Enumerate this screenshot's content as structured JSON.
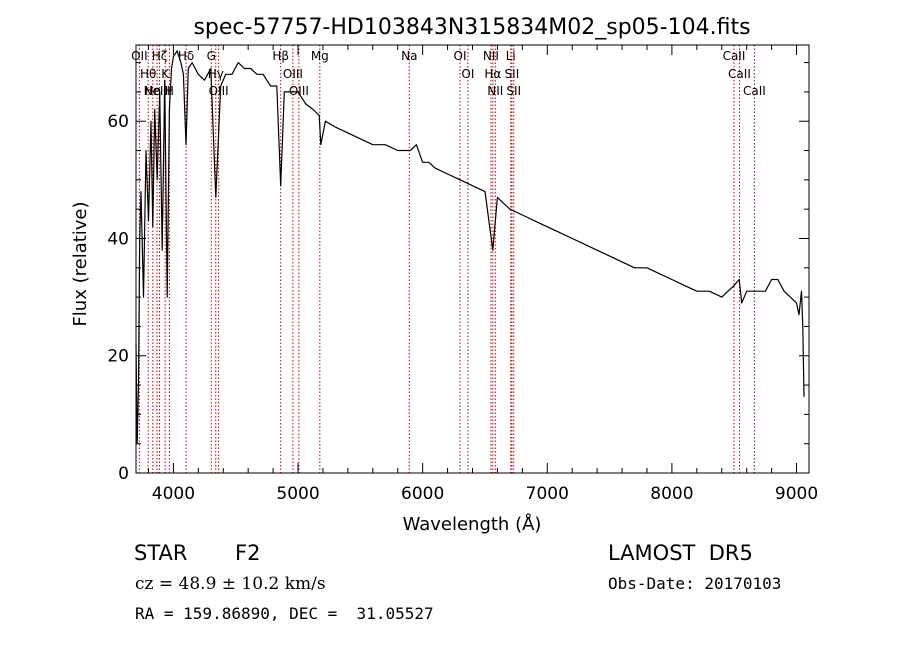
{
  "chart_data": {
    "type": "line",
    "title": "spec-57757-HD103843N315834M02_sp05-104.fits",
    "xlabel": "Wavelength (Å)",
    "ylabel": "Flux (relative)",
    "xlim": [
      3700,
      9100
    ],
    "ylim": [
      0,
      73
    ],
    "x_ticks": [
      4000,
      5000,
      6000,
      7000,
      8000,
      9000
    ],
    "x_tick_labels": [
      "4000",
      "5000",
      "6000",
      "7000",
      "8000",
      "9000"
    ],
    "y_ticks": [
      0,
      20,
      40,
      60
    ],
    "y_tick_labels": [
      "0",
      "20",
      "40",
      "60"
    ],
    "grid": false,
    "line_color": "#000000",
    "marker_color": "#c00000",
    "series": [
      {
        "x": [
          3700,
          3710,
          3720,
          3730,
          3740,
          3760,
          3780,
          3800,
          3820,
          3835,
          3850,
          3870,
          3890,
          3910,
          3930,
          3950,
          3968,
          3985,
          4000,
          4030,
          4060,
          4080,
          4101,
          4120,
          4150,
          4200,
          4250,
          4300,
          4340,
          4380,
          4420,
          4470,
          4520,
          4570,
          4620,
          4670,
          4720,
          4780,
          4830,
          4861,
          4890,
          4950,
          5000,
          5060,
          5120,
          5170,
          5183,
          5220,
          5300,
          5400,
          5500,
          5600,
          5700,
          5800,
          5900,
          5950,
          6000,
          6050,
          6100,
          6200,
          6300,
          6400,
          6500,
          6563,
          6600,
          6700,
          6800,
          6900,
          7000,
          7100,
          7200,
          7300,
          7400,
          7500,
          7600,
          7700,
          7800,
          7900,
          8000,
          8100,
          8200,
          8300,
          8400,
          8450,
          8500,
          8540,
          8560,
          8600,
          8650,
          8700,
          8750,
          8800,
          8850,
          8900,
          8950,
          9000,
          9020,
          9040,
          9050,
          9060
        ],
        "values": [
          22,
          5,
          15,
          40,
          48,
          30,
          55,
          43,
          60,
          42,
          62,
          50,
          65,
          38,
          67,
          30,
          62,
          69,
          71,
          72,
          70,
          68,
          56,
          69,
          70,
          68,
          67,
          69,
          47,
          66,
          68,
          68,
          70,
          69,
          69,
          68,
          68,
          66,
          66,
          49,
          65,
          65,
          65,
          63,
          62,
          61,
          56,
          60,
          59,
          58,
          57,
          56,
          56,
          55,
          55,
          56,
          53,
          53,
          52,
          51,
          50,
          49,
          48,
          38,
          47,
          45,
          44,
          43,
          42,
          41,
          40,
          39,
          38,
          37,
          36,
          35,
          35,
          34,
          33,
          32,
          31,
          31,
          30,
          31,
          32,
          33,
          29,
          31,
          31,
          31,
          31,
          33,
          33,
          31,
          30,
          29,
          27,
          31,
          25,
          13
        ]
      }
    ],
    "line_markers": [
      {
        "wavelength": 3727,
        "label": "OII"
      },
      {
        "wavelength": 3798,
        "label": "Hθ"
      },
      {
        "wavelength": 3835,
        "label": "Hη"
      },
      {
        "wavelength": 3869,
        "label": "NeIII"
      },
      {
        "wavelength": 3889,
        "label": "Hζ"
      },
      {
        "wavelength": 3934,
        "label": "K"
      },
      {
        "wavelength": 3968,
        "label": "H"
      },
      {
        "wavelength": 4102,
        "label": "Hδ"
      },
      {
        "wavelength": 4304,
        "label": "G"
      },
      {
        "wavelength": 4340,
        "label": "Hγ"
      },
      {
        "wavelength": 4363,
        "label": "OIII"
      },
      {
        "wavelength": 4861,
        "label": "Hβ"
      },
      {
        "wavelength": 4959,
        "label": "OIII"
      },
      {
        "wavelength": 5007,
        "label": "OIII"
      },
      {
        "wavelength": 5175,
        "label": "Mg"
      },
      {
        "wavelength": 5893,
        "label": "Na"
      },
      {
        "wavelength": 6300,
        "label": "OI"
      },
      {
        "wavelength": 6363,
        "label": "OI"
      },
      {
        "wavelength": 6548,
        "label": "NII"
      },
      {
        "wavelength": 6563,
        "label": "Hα"
      },
      {
        "wavelength": 6583,
        "label": "NII"
      },
      {
        "wavelength": 6707,
        "label": "Li"
      },
      {
        "wavelength": 6716,
        "label": "SII"
      },
      {
        "wavelength": 6731,
        "label": "SII"
      },
      {
        "wavelength": 8498,
        "label": "CaII"
      },
      {
        "wavelength": 8542,
        "label": "CaII"
      },
      {
        "wavelength": 8662,
        "label": "CaII"
      }
    ]
  },
  "info": {
    "object_type": "STAR",
    "subclass": "F2",
    "survey": "LAMOST  DR5",
    "velocity": "cz = 48.9 ± 10.2 km/s",
    "obs_date": "Obs-Date: 20170103",
    "coords": "RA = 159.86890, DEC =  31.05527"
  }
}
